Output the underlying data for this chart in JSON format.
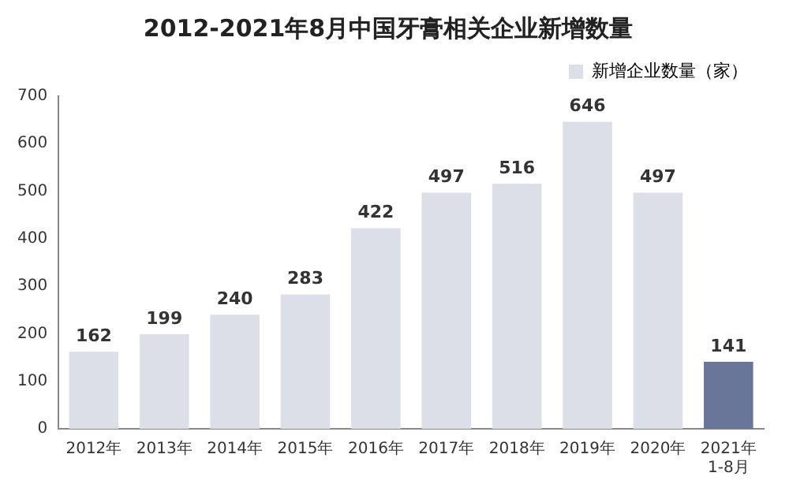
{
  "chart_data": {
    "type": "bar",
    "title": "2012-2021年8月中国牙膏相关企业新增数量",
    "categories": [
      "2012年",
      "2013年",
      "2014年",
      "2015年",
      "2016年",
      "2017年",
      "2018年",
      "2019年",
      "2020年",
      "2021年\n1-8月"
    ],
    "series": [
      {
        "name": "新增企业数量（家）",
        "colors": [
          "#dcdfe8",
          "#dcdfe8",
          "#dcdfe8",
          "#dcdfe8",
          "#dcdfe8",
          "#dcdfe8",
          "#dcdfe8",
          "#dcdfe8",
          "#dcdfe8",
          "#6a7699"
        ],
        "values": [
          162,
          199,
          240,
          283,
          422,
          497,
          516,
          646,
          497,
          141
        ]
      }
    ],
    "ylim": [
      0,
      700
    ],
    "yticks": [
      0,
      100,
      200,
      300,
      400,
      500,
      600,
      700
    ],
    "grid": false,
    "legend": "top right",
    "data_labels": true
  }
}
